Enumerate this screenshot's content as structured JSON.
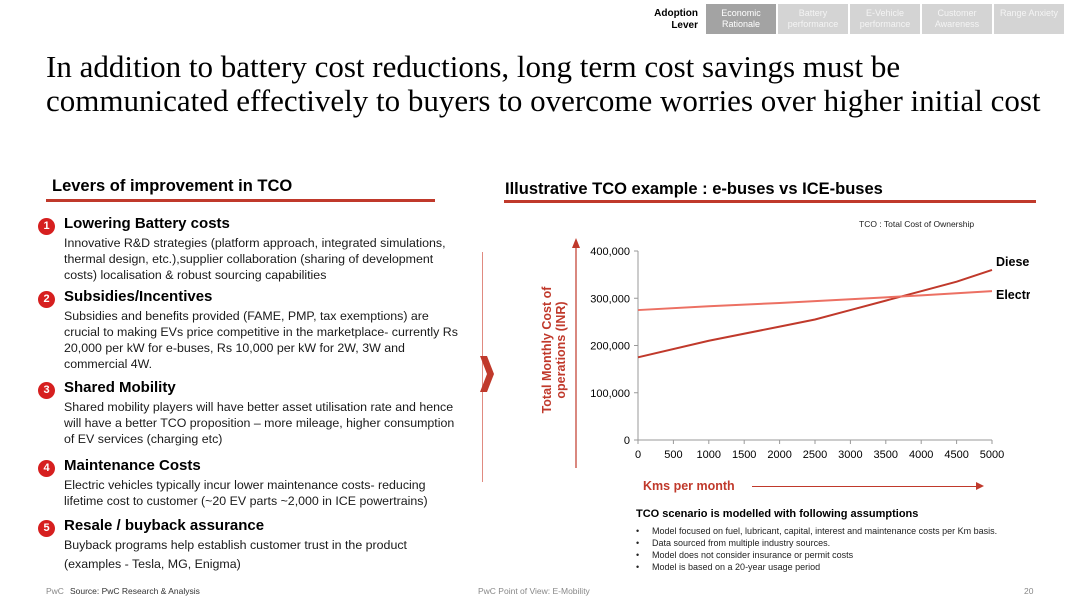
{
  "nav": {
    "label": "Adoption Lever",
    "tabs": [
      {
        "label": "Economic Rationale",
        "active": true
      },
      {
        "label": "Battery performance",
        "active": false
      },
      {
        "label": "E-Vehicle performance",
        "active": false
      },
      {
        "label": "Customer Awareness",
        "active": false
      },
      {
        "label": "Range Anxiety",
        "active": false
      }
    ]
  },
  "title": "In addition to battery cost reductions, long term cost savings must be communicated effectively to buyers to overcome worries over higher initial cost",
  "left": {
    "heading": "Levers of improvement in TCO",
    "levers": [
      {
        "num": "1",
        "title": "Lowering Battery costs",
        "text": "Innovative R&D strategies (platform approach, integrated simulations, thermal design, etc.),supplier collaboration (sharing of development costs) localisation & robust sourcing capabilities"
      },
      {
        "num": "2",
        "title": "Subsidies/Incentives",
        "text": "Subsidies and benefits provided (FAME, PMP, tax exemptions) are crucial to making EVs price competitive in the marketplace- currently Rs 20,000 per kW for e-buses, Rs 10,000 per kW for 2W, 3W and commercial 4W."
      },
      {
        "num": "3",
        "title": "Shared Mobility",
        "text": "Shared mobility players will have better asset utilisation rate and hence will have a better TCO proposition – more mileage, higher consumption of EV services (charging etc)"
      },
      {
        "num": "4",
        "title": "Maintenance Costs",
        "text": "Electric vehicles typically incur lower maintenance costs- reducing lifetime cost to customer (~20 EV parts ~2,000 in ICE powertrains)"
      },
      {
        "num": "5",
        "title": "Resale / buyback assurance",
        "text": "Buyback programs help establish customer trust in the product (examples - Tesla, MG, Enigma)"
      }
    ]
  },
  "right": {
    "heading": "Illustrative TCO example : e-buses vs ICE-buses",
    "tco_note": "TCO : Total Cost of Ownership",
    "assumptions_title": "TCO scenario is modelled with following assumptions",
    "assumptions": [
      "Model focused on fuel, lubricant, capital, interest and maintenance costs per Km basis.",
      "Data sourced from multiple industry sources.",
      "Model does not consider insurance or permit costs",
      "Model is based on a 20-year usage period"
    ]
  },
  "chart_data": {
    "type": "line",
    "xlabel": "Kms per month",
    "ylabel": "Total Monthly Cost of operations (INR)",
    "xlim": [
      0,
      5000
    ],
    "ylim": [
      0,
      400000
    ],
    "xticks": [
      0,
      500,
      1000,
      1500,
      2000,
      2500,
      3000,
      3500,
      4000,
      4500,
      5000
    ],
    "yticks": [
      0,
      100000,
      200000,
      300000,
      400000
    ],
    "ytick_labels": [
      "0",
      "100,000",
      "200,000",
      "300,000",
      "400,000"
    ],
    "grid": false,
    "series": [
      {
        "name": "Diesel",
        "color": "#c0392b",
        "x": [
          0,
          1000,
          2000,
          2500,
          3000,
          3500,
          4000,
          4500,
          5000
        ],
        "values": [
          175000,
          210000,
          240000,
          255000,
          275000,
          295000,
          315000,
          335000,
          360000
        ]
      },
      {
        "name": "Electric",
        "color": "#ec7063",
        "x": [
          0,
          1000,
          2000,
          3000,
          4000,
          5000
        ],
        "values": [
          275000,
          283000,
          290000,
          298000,
          306000,
          315000
        ]
      }
    ]
  },
  "footer": {
    "brand": "PwC",
    "source": "Source: PwC Research & Analysis",
    "middle": "PwC Point of View: E-Mobility",
    "page": "20"
  }
}
